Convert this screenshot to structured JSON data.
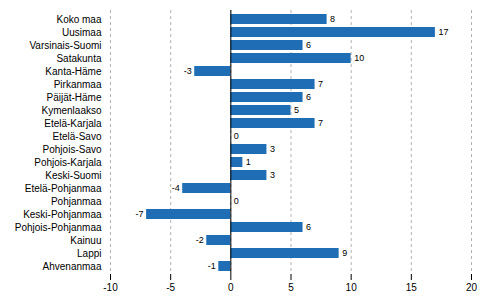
{
  "chart_data": {
    "type": "bar",
    "orientation": "horizontal",
    "categories": [
      "Ahvenanmaa",
      "Lappi",
      "Kainuu",
      "Pohjois-Pohjanmaa",
      "Keski-Pohjanmaa",
      "Pohjanmaa",
      "Etelä-Pohjanmaa",
      "Keski-Suomi",
      "Pohjois-Karjala",
      "Pohjois-Savo",
      "Etelä-Savo",
      "Etelä-Karjala",
      "Kymenlaakso",
      "Päijät-Häme",
      "Pirkanmaa",
      "Kanta-Häme",
      "Satakunta",
      "Varsinais-Suomi",
      "Uusimaa",
      "Koko maa"
    ],
    "values": [
      -1,
      9,
      -2,
      6,
      -7,
      0,
      -4,
      3,
      1,
      3,
      0,
      7,
      5,
      6,
      7,
      -3,
      10,
      6,
      17,
      8
    ],
    "color": "#1F6EB5",
    "xlim": [
      -10,
      20
    ],
    "xticks": [
      -10,
      -5,
      0,
      5,
      10,
      15,
      20
    ],
    "grid": true,
    "data_labels": true
  }
}
